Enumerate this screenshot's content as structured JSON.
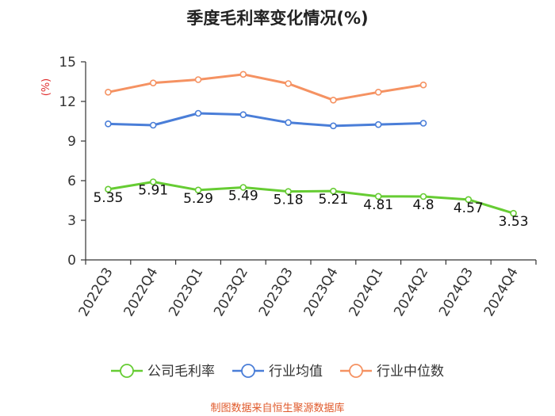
{
  "chart_data": {
    "type": "line",
    "title": "季度毛利率变化情况(%)",
    "ylabel": "(%)",
    "ylabel_color": "#e03030",
    "ylim": [
      0,
      15
    ],
    "yticks": [
      0,
      3,
      6,
      9,
      12,
      15
    ],
    "grid": false,
    "categories": [
      "2022Q3",
      "2022Q4",
      "2023Q1",
      "2023Q2",
      "2023Q3",
      "2023Q4",
      "2024Q1",
      "2024Q2",
      "2024Q3",
      "2024Q4"
    ],
    "series": [
      {
        "name": "公司毛利率",
        "color": "#66cc33",
        "values": [
          5.35,
          5.91,
          5.29,
          5.49,
          5.18,
          5.21,
          4.81,
          4.8,
          4.57,
          3.53
        ],
        "labels": [
          "5.35",
          "5.91",
          "5.29",
          "5.49",
          "5.18",
          "5.21",
          "4.81",
          "4.8",
          "4.57",
          "3.53"
        ]
      },
      {
        "name": "行业均值",
        "color": "#4a7ed8",
        "values": [
          10.3,
          10.2,
          11.1,
          11.0,
          10.4,
          10.15,
          10.25,
          10.35,
          null,
          null
        ]
      },
      {
        "name": "行业中位数",
        "color": "#f59262",
        "values": [
          12.7,
          13.4,
          13.65,
          14.05,
          13.35,
          12.1,
          12.7,
          13.25,
          null,
          null
        ]
      }
    ],
    "legend_position": "bottom"
  },
  "source": {
    "text": "制图数据来自恒生聚源数据库",
    "color": "#e05a2b"
  }
}
